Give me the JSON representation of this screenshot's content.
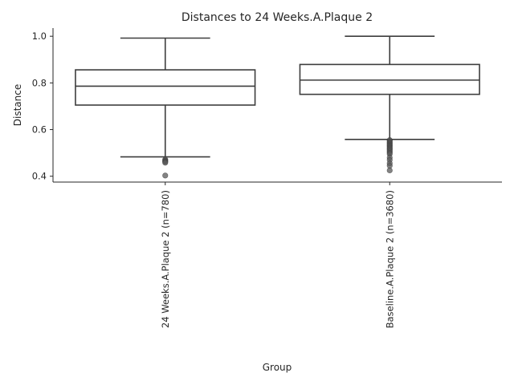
{
  "chart_data": {
    "type": "box",
    "title": "Distances to 24 Weeks.A.Plaque 2",
    "xlabel": "Group",
    "ylabel": "Distance",
    "ylim": [
      0.375,
      1.035
    ],
    "yticks": [
      0.4,
      0.6,
      0.8,
      1.0
    ],
    "ytick_labels": [
      "0.4",
      "0.6",
      "0.8",
      "1.0"
    ],
    "grid": false,
    "categories": [
      "24 Weeks.A.Plaque 2 (n=780)",
      "Baseline.A.Plaque 2 (n=3680)"
    ],
    "boxes": [
      {
        "category": "24 Weeks.A.Plaque 2 (n=780)",
        "whisker_low": 0.483,
        "q1": 0.705,
        "median": 0.786,
        "q3": 0.856,
        "whisker_high": 0.992,
        "outliers": [
          0.472,
          0.468,
          0.465,
          0.462,
          0.458,
          0.403
        ]
      },
      {
        "category": "Baseline.A.Plaque 2 (n=3680)",
        "whisker_low": 0.558,
        "q1": 0.751,
        "median": 0.812,
        "q3": 0.879,
        "whisker_high": 1.0,
        "outliers": [
          0.555,
          0.551,
          0.547,
          0.543,
          0.539,
          0.535,
          0.531,
          0.527,
          0.523,
          0.519,
          0.515,
          0.51,
          0.505,
          0.5,
          0.495,
          0.48,
          0.47,
          0.455,
          0.445,
          0.425
        ]
      }
    ]
  }
}
